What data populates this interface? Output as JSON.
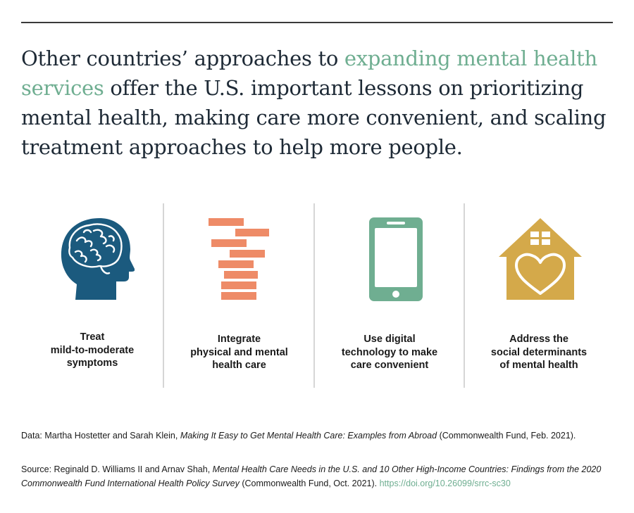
{
  "headline": {
    "before": "Other countries’ approaches to ",
    "highlight": "expanding mental health services",
    "after": " offer the U.S. important lessons on prioritizing mental health, making care more convenient, and scaling treatment approaches to help more people."
  },
  "columns": [
    {
      "icon": "brain-head-icon",
      "color": "#1b5a7e",
      "lines": [
        "Treat",
        "mild-to-moderate",
        "symptoms"
      ]
    },
    {
      "icon": "stacked-bricks-icon",
      "color": "#ee8b67",
      "lines": [
        "Integrate",
        "physical and mental",
        "health care"
      ]
    },
    {
      "icon": "smartphone-icon",
      "color": "#6fae91",
      "lines": [
        "Use digital",
        "technology to make",
        "care convenient"
      ]
    },
    {
      "icon": "house-heart-icon",
      "color": "#d4a94a",
      "lines": [
        "Address the",
        "social determinants",
        "of mental health"
      ]
    }
  ],
  "data_note": {
    "prefix": "Data: Martha Hostetter and Sarah Klein, ",
    "title": "Making It Easy to Get Mental Health Care: Examples from Abroad",
    "suffix": " (Commonwealth Fund, Feb. 2021)."
  },
  "source_note": {
    "prefix": "Source: Reginald D. Williams II and Arnav Shah, ",
    "title": "Mental Health Care Needs in the U.S. and 10 Other High-Income Countries: Findings from the 2020 Commonwealth Fund International Health Policy Survey",
    "suffix": " (Commonwealth Fund, Oct. 2021). ",
    "link": "https://doi.org/10.26099/srrc-sc30"
  }
}
